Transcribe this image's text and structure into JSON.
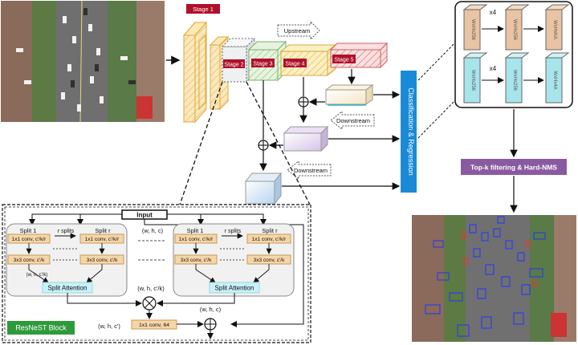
{
  "stages": [
    "Stage 1",
    "Stage 2",
    "Stage 3",
    "Stage 4",
    "Stage 5"
  ],
  "arrows": {
    "upstream": "Upstream",
    "downstream": "Downstream"
  },
  "classification": "Classification & Regression",
  "topk": "Top-k filtering & Hard-NMS",
  "head": {
    "cls_box": "WxHx256",
    "cls_out": "WxHxKA",
    "reg_out": "WxHx4A",
    "repeat": "x4"
  },
  "block": {
    "title": "ResNeST Block",
    "input": "Input",
    "split1": "Split 1",
    "splitr": "Split r",
    "rsplits": "r splits",
    "conv1": "1x1 conv, c'/k/r",
    "conv3": "3x3 conv, c'/k",
    "whck": "(w, h, c'/k)",
    "attention": "Split Attention",
    "whc": "(w, h, c)",
    "whck2": "(w, h, c'/k)",
    "whc2": "(w, h, c)",
    "whcp": "(w, h, c')",
    "conv64": "1x1 conv, 64"
  },
  "colors": {
    "stage_label": "#b0102a",
    "stage1": "#f5d48a",
    "stage3": "#cfe8c5",
    "stage4": "#f4e19a",
    "stage5": "#f7c4c4",
    "classification": "#1a8ad8",
    "topk": "#8a5aa0",
    "head_tan": "#e8c4a4",
    "head_cyan": "#a8e4ec",
    "conv_box": "#f6d6a8",
    "attention": "#c8f2f8",
    "block_title": "#2e9a3c"
  }
}
